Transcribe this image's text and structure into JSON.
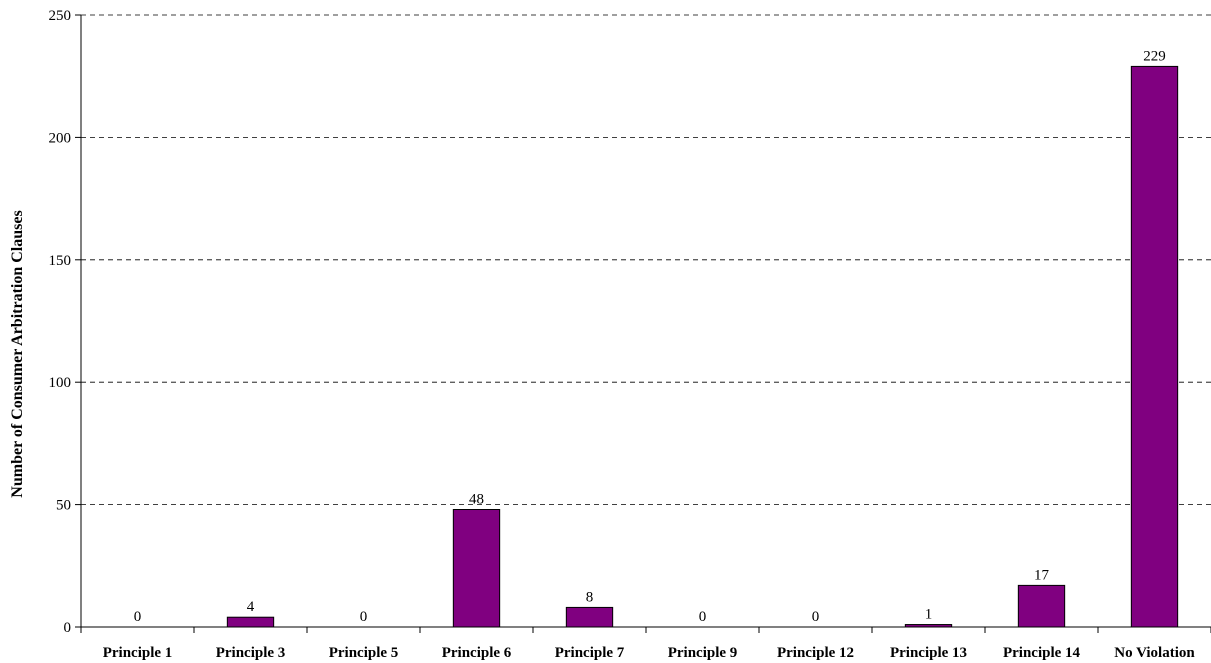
{
  "chart_data": {
    "type": "bar",
    "categories": [
      "Principle 1",
      "Principle 3",
      "Principle 5",
      "Principle 6",
      "Principle 7",
      "Principle 9",
      "Principle 12",
      "Principle 13",
      "Principle 14",
      "No Violation"
    ],
    "values": [
      0,
      4,
      0,
      48,
      8,
      0,
      0,
      1,
      17,
      229
    ],
    "title": "",
    "xlabel": "",
    "ylabel": "Number of Consumer Arbitration Clauses",
    "ylim": [
      0,
      250
    ],
    "yticks": [
      0,
      50,
      100,
      150,
      200,
      250
    ],
    "grid": true,
    "legend": "none",
    "bar_color": "#800080",
    "bar_stroke": "#000000"
  }
}
